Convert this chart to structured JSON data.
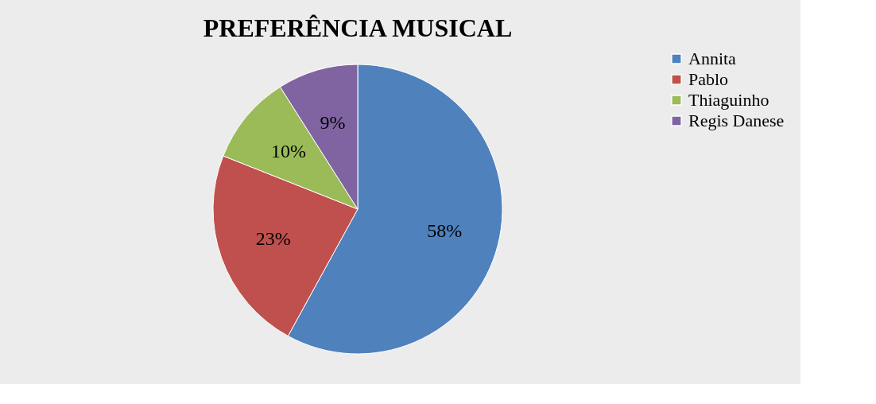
{
  "chart_data": {
    "type": "pie",
    "title": "PREFERÊNCIA MUSICAL",
    "categories": [
      "Annita",
      "Pablo",
      "Thiaguinho",
      "Regis Danese"
    ],
    "values": [
      58,
      23,
      10,
      9
    ],
    "colors": [
      "#4f81bd",
      "#c0504d",
      "#9bbb59",
      "#8064a2"
    ],
    "value_labels": [
      "58%",
      "23%",
      "10%",
      "9%"
    ],
    "legend": "right"
  }
}
